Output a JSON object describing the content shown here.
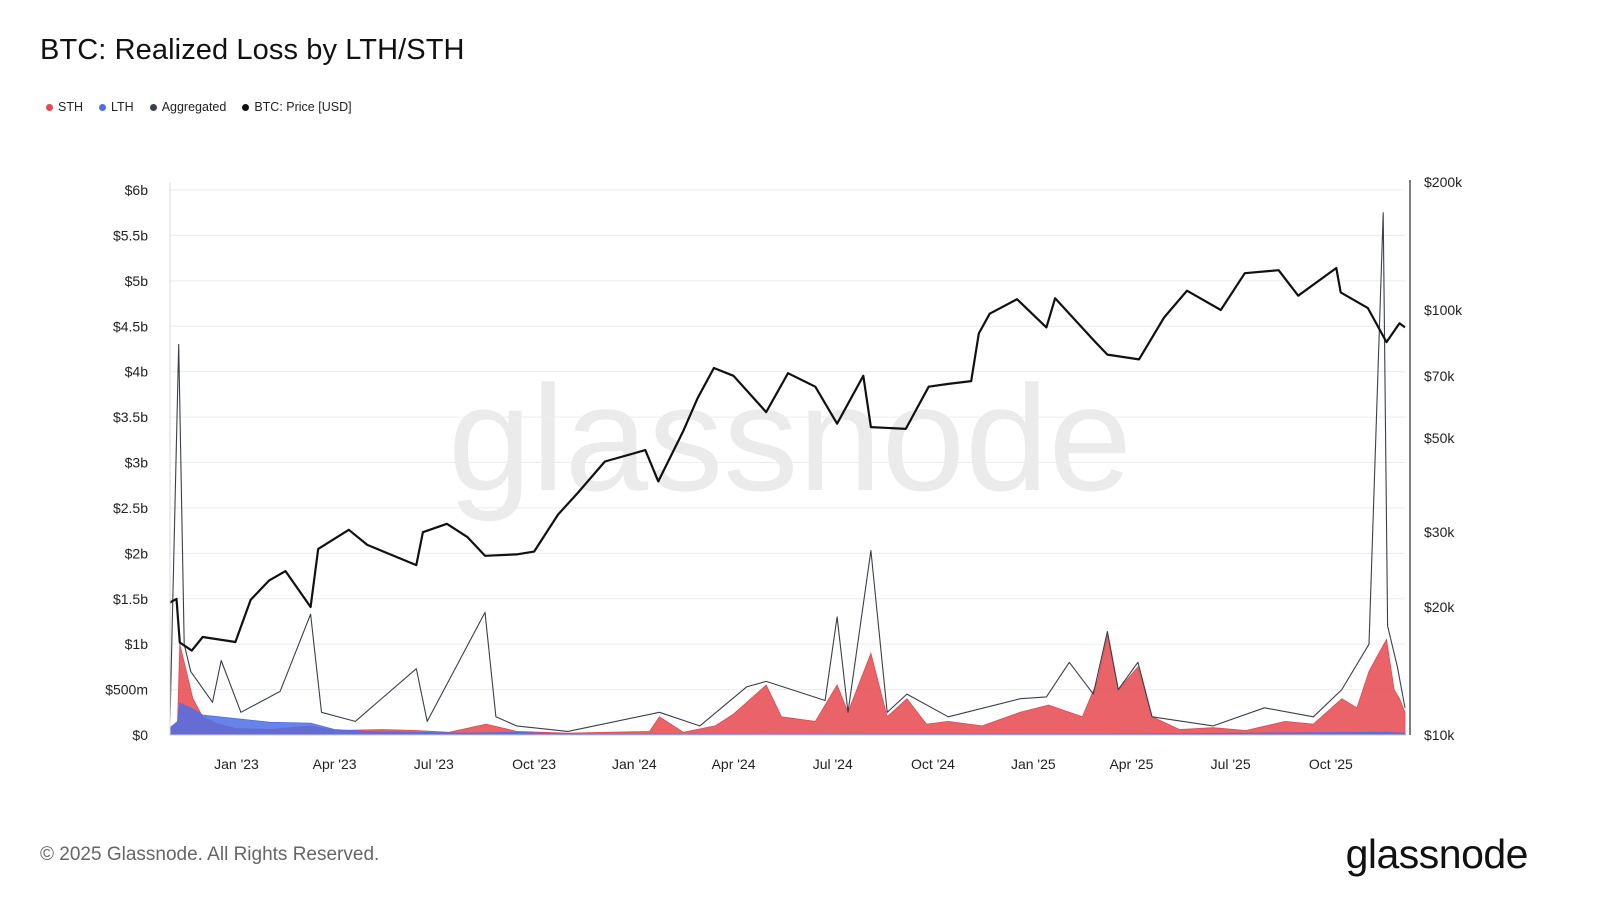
{
  "header": {
    "title": "BTC: Realized Loss by LTH/STH"
  },
  "legend": [
    {
      "label": "STH",
      "color": "#e5484d"
    },
    {
      "label": "LTH",
      "color": "#4d6fe8"
    },
    {
      "label": "Aggregated",
      "color": "#3a3f4a"
    },
    {
      "label": "BTC: Price [USD]",
      "color": "#111111"
    }
  ],
  "watermark": "glassnode",
  "footer": {
    "copyright": "© 2025 Glassnode. All Rights Reserved.",
    "brand": "glassnode"
  },
  "chart_data": {
    "type": "area",
    "title": "BTC: Realized Loss by LTH/STH",
    "x_range": [
      "2022-11-01",
      "2025-12-08"
    ],
    "x_ticks": [
      {
        "date": "2023-01-01",
        "label": "Jan '23"
      },
      {
        "date": "2023-04-01",
        "label": "Apr '23"
      },
      {
        "date": "2023-07-01",
        "label": "Jul '23"
      },
      {
        "date": "2023-10-01",
        "label": "Oct '23"
      },
      {
        "date": "2024-01-01",
        "label": "Jan '24"
      },
      {
        "date": "2024-04-01",
        "label": "Apr '24"
      },
      {
        "date": "2024-07-01",
        "label": "Jul '24"
      },
      {
        "date": "2024-10-01",
        "label": "Oct '24"
      },
      {
        "date": "2025-01-01",
        "label": "Jan '25"
      },
      {
        "date": "2025-04-01",
        "label": "Apr '25"
      },
      {
        "date": "2025-07-01",
        "label": "Jul '25"
      },
      {
        "date": "2025-10-01",
        "label": "Oct '25"
      }
    ],
    "y_left": {
      "range": [
        0,
        6000000000
      ],
      "ticks": [
        {
          "value": 0,
          "label": "$0"
        },
        {
          "value": 500000000,
          "label": "$500m"
        },
        {
          "value": 1000000000,
          "label": "$1b"
        },
        {
          "value": 1500000000,
          "label": "$1.5b"
        },
        {
          "value": 2000000000,
          "label": "$2b"
        },
        {
          "value": 2500000000,
          "label": "$2.5b"
        },
        {
          "value": 3000000000,
          "label": "$3b"
        },
        {
          "value": 3500000000,
          "label": "$3.5b"
        },
        {
          "value": 4000000000,
          "label": "$4b"
        },
        {
          "value": 4500000000,
          "label": "$4.5b"
        },
        {
          "value": 5000000000,
          "label": "$5b"
        },
        {
          "value": 5500000000,
          "label": "$5.5b"
        },
        {
          "value": 6000000000,
          "label": "$6b"
        }
      ]
    },
    "y_right": {
      "scale": "log",
      "range": [
        10000,
        200000
      ],
      "ticks": [
        {
          "value": 10000,
          "label": "$10k"
        },
        {
          "value": 20000,
          "label": "$20k"
        },
        {
          "value": 30000,
          "label": "$30k"
        },
        {
          "value": 50000,
          "label": "$50k"
        },
        {
          "value": 70000,
          "label": "$70k"
        },
        {
          "value": 100000,
          "label": "$100k"
        },
        {
          "value": 200000,
          "label": "$200k"
        }
      ]
    },
    "grid": true,
    "legend_position": "top-left",
    "series": [
      {
        "name": "STH",
        "kind": "area",
        "color": "#e5484d",
        "points": [
          [
            "2022-11-01",
            60000000
          ],
          [
            "2022-11-08",
            150000000
          ],
          [
            "2022-11-10",
            1000000000
          ],
          [
            "2022-11-14",
            800000000
          ],
          [
            "2022-11-22",
            400000000
          ],
          [
            "2022-12-01",
            200000000
          ],
          [
            "2022-12-15",
            120000000
          ],
          [
            "2023-01-01",
            70000000
          ],
          [
            "2023-02-01",
            60000000
          ],
          [
            "2023-03-10",
            100000000
          ],
          [
            "2023-04-01",
            50000000
          ],
          [
            "2023-05-15",
            60000000
          ],
          [
            "2023-06-15",
            50000000
          ],
          [
            "2023-07-15",
            30000000
          ],
          [
            "2023-08-18",
            120000000
          ],
          [
            "2023-09-15",
            40000000
          ],
          [
            "2023-11-01",
            20000000
          ],
          [
            "2024-01-15",
            40000000
          ],
          [
            "2024-01-24",
            200000000
          ],
          [
            "2024-02-15",
            30000000
          ],
          [
            "2024-03-15",
            100000000
          ],
          [
            "2024-04-01",
            230000000
          ],
          [
            "2024-04-15",
            380000000
          ],
          [
            "2024-05-01",
            550000000
          ],
          [
            "2024-05-15",
            200000000
          ],
          [
            "2024-06-15",
            150000000
          ],
          [
            "2024-07-05",
            550000000
          ],
          [
            "2024-07-15",
            250000000
          ],
          [
            "2024-08-05",
            900000000
          ],
          [
            "2024-08-20",
            200000000
          ],
          [
            "2024-09-07",
            400000000
          ],
          [
            "2024-09-25",
            120000000
          ],
          [
            "2024-10-15",
            150000000
          ],
          [
            "2024-11-15",
            100000000
          ],
          [
            "2024-12-20",
            250000000
          ],
          [
            "2025-01-15",
            330000000
          ],
          [
            "2025-02-03",
            250000000
          ],
          [
            "2025-02-15",
            200000000
          ],
          [
            "2025-03-01",
            600000000
          ],
          [
            "2025-03-10",
            1100000000
          ],
          [
            "2025-03-20",
            500000000
          ],
          [
            "2025-04-07",
            750000000
          ],
          [
            "2025-04-20",
            200000000
          ],
          [
            "2025-05-15",
            60000000
          ],
          [
            "2025-06-15",
            80000000
          ],
          [
            "2025-07-15",
            50000000
          ],
          [
            "2025-08-20",
            150000000
          ],
          [
            "2025-09-15",
            120000000
          ],
          [
            "2025-10-11",
            400000000
          ],
          [
            "2025-10-25",
            300000000
          ],
          [
            "2025-11-05",
            700000000
          ],
          [
            "2025-11-14",
            900000000
          ],
          [
            "2025-11-21",
            1050000000
          ],
          [
            "2025-11-28",
            500000000
          ],
          [
            "2025-12-03",
            400000000
          ],
          [
            "2025-12-08",
            250000000
          ]
        ]
      },
      {
        "name": "LTH",
        "kind": "area",
        "color": "#4d6fe8",
        "points": [
          [
            "2022-11-01",
            80000000
          ],
          [
            "2022-11-08",
            150000000
          ],
          [
            "2022-11-10",
            350000000
          ],
          [
            "2022-11-20",
            300000000
          ],
          [
            "2022-12-01",
            220000000
          ],
          [
            "2023-01-01",
            180000000
          ],
          [
            "2023-02-01",
            140000000
          ],
          [
            "2023-03-10",
            130000000
          ],
          [
            "2023-04-01",
            60000000
          ],
          [
            "2023-05-01",
            40000000
          ],
          [
            "2023-06-15",
            30000000
          ],
          [
            "2023-08-01",
            20000000
          ],
          [
            "2023-09-15",
            30000000
          ],
          [
            "2023-11-01",
            10000000
          ],
          [
            "2024-01-24",
            10000000
          ],
          [
            "2024-05-01",
            5000000
          ],
          [
            "2024-08-05",
            10000000
          ],
          [
            "2025-03-10",
            10000000
          ],
          [
            "2025-11-21",
            30000000
          ],
          [
            "2025-12-08",
            20000000
          ]
        ]
      },
      {
        "name": "Aggregated",
        "kind": "line",
        "color": "#3a3f4a",
        "points": [
          [
            "2022-11-01",
            160000000
          ],
          [
            "2022-11-09",
            4300000000
          ],
          [
            "2022-11-14",
            1000000000
          ],
          [
            "2022-11-20",
            700000000
          ],
          [
            "2022-12-10",
            360000000
          ],
          [
            "2022-12-18",
            820000000
          ],
          [
            "2023-01-05",
            250000000
          ],
          [
            "2023-02-10",
            480000000
          ],
          [
            "2023-03-10",
            1330000000
          ],
          [
            "2023-03-20",
            250000000
          ],
          [
            "2023-04-20",
            150000000
          ],
          [
            "2023-06-15",
            730000000
          ],
          [
            "2023-06-25",
            150000000
          ],
          [
            "2023-08-17",
            1350000000
          ],
          [
            "2023-08-27",
            200000000
          ],
          [
            "2023-09-15",
            100000000
          ],
          [
            "2023-11-01",
            40000000
          ],
          [
            "2024-01-24",
            250000000
          ],
          [
            "2024-03-01",
            100000000
          ],
          [
            "2024-04-13",
            530000000
          ],
          [
            "2024-05-01",
            590000000
          ],
          [
            "2024-06-24",
            380000000
          ],
          [
            "2024-07-05",
            1300000000
          ],
          [
            "2024-07-15",
            250000000
          ],
          [
            "2024-08-05",
            2030000000
          ],
          [
            "2024-08-20",
            250000000
          ],
          [
            "2024-09-07",
            450000000
          ],
          [
            "2024-10-15",
            200000000
          ],
          [
            "2024-12-20",
            400000000
          ],
          [
            "2025-01-13",
            420000000
          ],
          [
            "2025-02-03",
            800000000
          ],
          [
            "2025-02-25",
            450000000
          ],
          [
            "2025-03-10",
            1140000000
          ],
          [
            "2025-03-20",
            500000000
          ],
          [
            "2025-04-07",
            800000000
          ],
          [
            "2025-04-20",
            200000000
          ],
          [
            "2025-06-15",
            100000000
          ],
          [
            "2025-08-01",
            300000000
          ],
          [
            "2025-09-15",
            200000000
          ],
          [
            "2025-10-11",
            500000000
          ],
          [
            "2025-11-05",
            1000000000
          ],
          [
            "2025-11-18",
            5750000000
          ],
          [
            "2025-11-22",
            1200000000
          ],
          [
            "2025-12-01",
            750000000
          ],
          [
            "2025-12-08",
            300000000
          ]
        ]
      },
      {
        "name": "BTC: Price [USD]",
        "kind": "line",
        "axis": "right",
        "color": "#111111",
        "points": [
          [
            "2022-11-01",
            20500
          ],
          [
            "2022-11-07",
            20900
          ],
          [
            "2022-11-10",
            16500
          ],
          [
            "2022-11-21",
            15800
          ],
          [
            "2022-12-01",
            17000
          ],
          [
            "2022-12-31",
            16550
          ],
          [
            "2023-01-14",
            20800
          ],
          [
            "2023-01-31",
            23100
          ],
          [
            "2023-02-15",
            24300
          ],
          [
            "2023-03-10",
            20000
          ],
          [
            "2023-03-17",
            27400
          ],
          [
            "2023-04-14",
            30400
          ],
          [
            "2023-05-01",
            28000
          ],
          [
            "2023-06-15",
            25100
          ],
          [
            "2023-06-21",
            30000
          ],
          [
            "2023-07-13",
            31400
          ],
          [
            "2023-08-01",
            29200
          ],
          [
            "2023-08-17",
            26400
          ],
          [
            "2023-09-15",
            26600
          ],
          [
            "2023-10-01",
            27000
          ],
          [
            "2023-10-23",
            33000
          ],
          [
            "2023-11-10",
            37100
          ],
          [
            "2023-12-05",
            44000
          ],
          [
            "2024-01-11",
            46800
          ],
          [
            "2024-01-23",
            39500
          ],
          [
            "2024-02-15",
            52000
          ],
          [
            "2024-02-28",
            62000
          ],
          [
            "2024-03-14",
            73000
          ],
          [
            "2024-04-01",
            70000
          ],
          [
            "2024-05-01",
            57500
          ],
          [
            "2024-05-21",
            71000
          ],
          [
            "2024-06-15",
            66000
          ],
          [
            "2024-07-05",
            54000
          ],
          [
            "2024-07-29",
            70000
          ],
          [
            "2024-08-05",
            53000
          ],
          [
            "2024-09-06",
            52500
          ],
          [
            "2024-09-27",
            66000
          ],
          [
            "2024-10-15",
            67000
          ],
          [
            "2024-11-05",
            68000
          ],
          [
            "2024-11-12",
            88000
          ],
          [
            "2024-11-22",
            98000
          ],
          [
            "2024-12-17",
            106000
          ],
          [
            "2025-01-13",
            91000
          ],
          [
            "2025-01-21",
            106500
          ],
          [
            "2025-02-27",
            84000
          ],
          [
            "2025-03-10",
            78500
          ],
          [
            "2025-04-08",
            76500
          ],
          [
            "2025-05-01",
            96000
          ],
          [
            "2025-05-22",
            111000
          ],
          [
            "2025-06-22",
            100000
          ],
          [
            "2025-07-14",
            122000
          ],
          [
            "2025-08-14",
            124000
          ],
          [
            "2025-09-01",
            108000
          ],
          [
            "2025-10-06",
            125500
          ],
          [
            "2025-10-10",
            110000
          ],
          [
            "2025-11-04",
            101000
          ],
          [
            "2025-11-21",
            84000
          ],
          [
            "2025-12-03",
            93000
          ],
          [
            "2025-12-08",
            91000
          ]
        ]
      }
    ]
  }
}
